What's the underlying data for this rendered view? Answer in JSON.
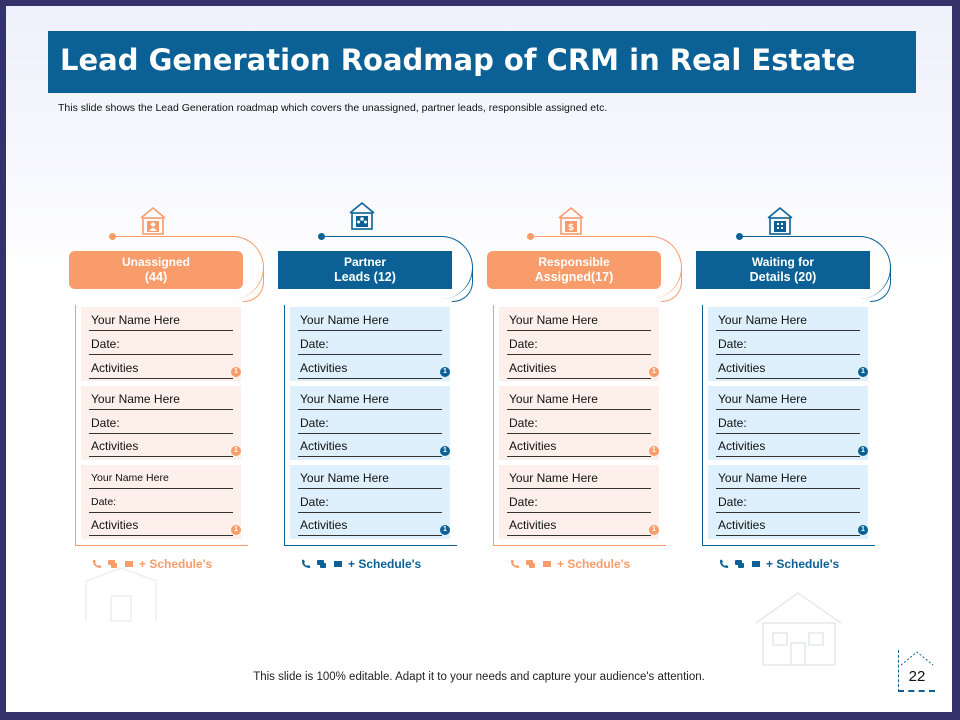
{
  "title": "Lead Generation Roadmap of CRM in Real Estate",
  "subtitle": "This slide shows the Lead Generation roadmap which covers the unassigned, partner leads, responsible assigned etc.",
  "footer": "This slide is 100% editable. Adapt it to your needs and capture your audience's attention.",
  "page_number": "22",
  "colors": {
    "orange": "#f79c6a",
    "blue": "#0b6195",
    "orange_card": "#fdf0ea",
    "blue_card": "#ddf0fb"
  },
  "columns": [
    {
      "header_line1": "Unassigned",
      "header_line2": "(44)",
      "icon": "house-person-icon",
      "cards": [
        {
          "name": "Your Name Here",
          "date": "Date:",
          "activities": "Activities",
          "badge": "1"
        },
        {
          "name": "Your Name Here",
          "date": "Date:",
          "activities": "Activities",
          "badge": "1"
        },
        {
          "name": "Your Name Here",
          "date": "Date:",
          "activities": "Activities",
          "badge": "1"
        }
      ],
      "schedule": "+ Schedule's"
    },
    {
      "header_line1": "Partner",
      "header_line2": "Leads (12)",
      "icon": "house-team-icon",
      "cards": [
        {
          "name": "Your Name Here",
          "date": "Date:",
          "activities": "Activities",
          "badge": "1"
        },
        {
          "name": "Your Name Here",
          "date": "Date:",
          "activities": "Activities",
          "badge": "1"
        },
        {
          "name": "Your Name Here",
          "date": "Date:",
          "activities": "Activities",
          "badge": "1"
        }
      ],
      "schedule": "+ Schedule's"
    },
    {
      "header_line1": "Responsible",
      "header_line2": "Assigned(17)",
      "icon": "house-money-icon",
      "cards": [
        {
          "name": "Your Name Here",
          "date": "Date:",
          "activities": "Activities",
          "badge": "1"
        },
        {
          "name": "Your Name Here",
          "date": "Date:",
          "activities": "Activities",
          "badge": "1"
        },
        {
          "name": "Your Name Here",
          "date": "Date:",
          "activities": "Activities",
          "badge": "1"
        }
      ],
      "schedule": "+ Schedule's"
    },
    {
      "header_line1": "Waiting for",
      "header_line2": "Details (20)",
      "icon": "house-building-icon",
      "cards": [
        {
          "name": "Your Name Here",
          "date": "Date:",
          "activities": "Activities",
          "badge": "1"
        },
        {
          "name": "Your Name Here",
          "date": "Date:",
          "activities": "Activities",
          "badge": "1"
        },
        {
          "name": "Your Name Here",
          "date": "Date:",
          "activities": "Activities",
          "badge": "1"
        }
      ],
      "schedule": "+ Schedule's"
    }
  ]
}
